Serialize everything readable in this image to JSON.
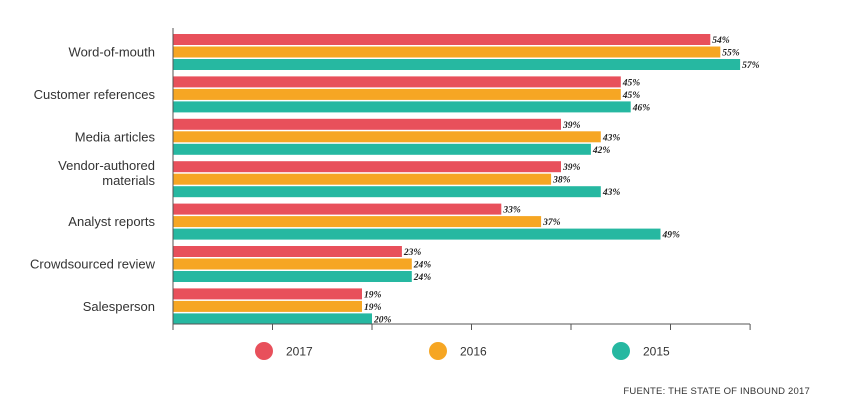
{
  "chart_data": {
    "type": "bar",
    "orientation": "horizontal",
    "categories": [
      "Word-of-mouth",
      "Customer references",
      "Media articles",
      "Vendor-authored materials",
      "Analyst reports",
      "Crowdsourced review",
      "Salesperson"
    ],
    "category_lines": [
      [
        "Word-of-mouth"
      ],
      [
        "Customer references"
      ],
      [
        "Media articles"
      ],
      [
        "Vendor-authored",
        "materials"
      ],
      [
        "Analyst reports"
      ],
      [
        "Crowdsourced review"
      ],
      [
        "Salesperson"
      ]
    ],
    "series": [
      {
        "name": "2017",
        "color": "#e8505b",
        "values": [
          54,
          45,
          39,
          39,
          33,
          23,
          19
        ],
        "labels": [
          "54%",
          "45%",
          "39%",
          "39%",
          "33%",
          "23%",
          "19%"
        ]
      },
      {
        "name": "2016",
        "color": "#f6a623",
        "values": [
          55,
          45,
          43,
          38,
          37,
          24,
          19
        ],
        "labels": [
          "55%",
          "45%",
          "43%",
          "38%",
          "37%",
          "24%",
          "19%"
        ]
      },
      {
        "name": "2015",
        "color": "#26b8a1",
        "values": [
          57,
          46,
          42,
          43,
          49,
          24,
          20
        ],
        "labels": [
          "57%",
          "46%",
          "42%",
          "43%",
          "49%",
          "24%",
          "20%"
        ]
      }
    ],
    "xlim": [
      0,
      58
    ],
    "grid": false,
    "legend_position": "bottom"
  },
  "source_text": "FUENTE: THE STATE OF INBOUND 2017"
}
